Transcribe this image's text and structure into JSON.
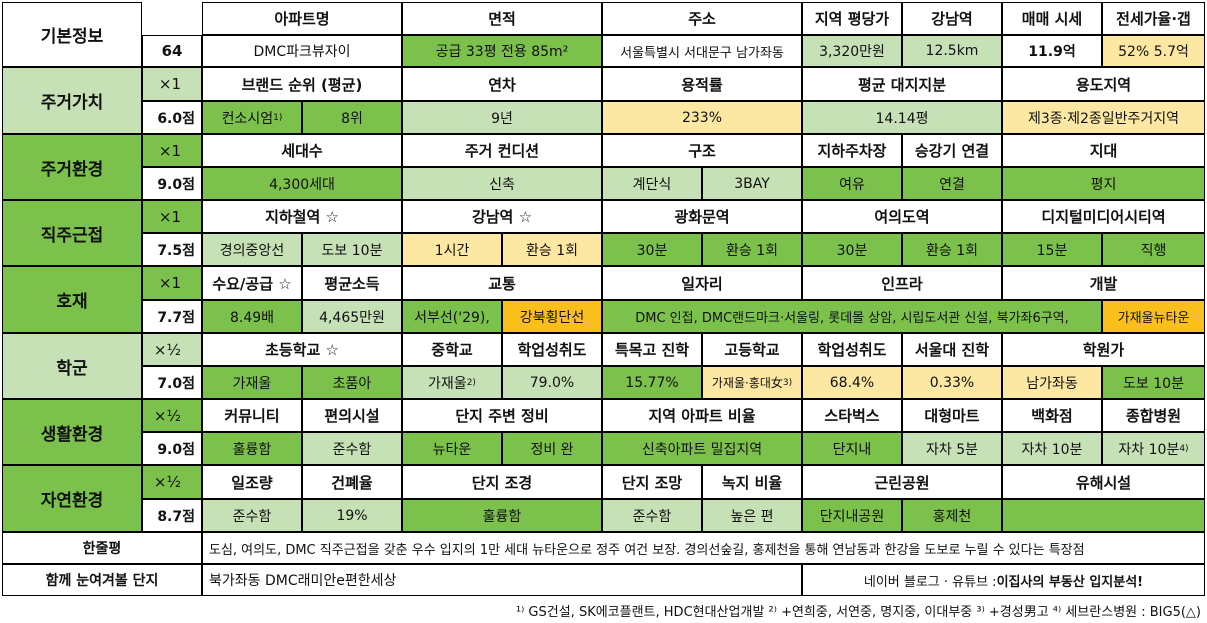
{
  "header": {
    "basic_info": "기본정보",
    "apt_no": "64",
    "cols": [
      "아파트명",
      "면적",
      "주소",
      "지역 평당가",
      "강남역",
      "매매 시세",
      "전세가율·갭"
    ],
    "values": {
      "apt_name": "DMC파크뷰자이",
      "area": "공급 33평   전용 85m²",
      "address": "서울특별시 서대문구 남가좌동",
      "price_per_pyeong": "3,320만원",
      "gangnam_dist": "12.5km",
      "sale_price": "11.9억",
      "jeonse_gap": "52%  5.7억"
    }
  },
  "sections": [
    {
      "name": "주거가치",
      "mult": "×1",
      "score": "6.0점"
    },
    {
      "name": "주거환경",
      "mult": "×1",
      "score": "9.0점"
    },
    {
      "name": "직주근접",
      "mult": "×1",
      "score": "7.5점"
    },
    {
      "name": "호재",
      "mult": "×1",
      "score": "7.7점"
    },
    {
      "name": "학군",
      "mult": "×½",
      "score": "7.0점"
    },
    {
      "name": "생활환경",
      "mult": "×½",
      "score": "9.0점"
    },
    {
      "name": "자연환경",
      "mult": "×½",
      "score": "8.7점"
    }
  ],
  "s1": {
    "h": [
      "브랜드 순위 (평균)",
      "연차",
      "용적률",
      "평균 대지지분",
      "용도지역"
    ],
    "brand": "컨소시엄",
    "brand_sup": "1)",
    "rank": "8위",
    "age": "9년",
    "far": "233%",
    "land": "14.14평",
    "zone": "제3종·제2종일반주거지역"
  },
  "s2": {
    "h": [
      "세대수",
      "주거 컨디션",
      "구조",
      "지하주차장",
      "승강기 연결",
      "지대"
    ],
    "v": [
      "4,300세대",
      "신축",
      "계단식",
      "3BAY",
      "여유",
      "연결",
      "평지"
    ]
  },
  "s3": {
    "h": [
      "지하철역 ☆",
      "강남역 ☆",
      "광화문역",
      "여의도역",
      "디지털미디어시티역"
    ],
    "v": [
      "경의중앙선",
      "도보 10분",
      "1시간",
      "환승 1회",
      "30분",
      "환승 1회",
      "30분",
      "환승 1회",
      "15분",
      "직행"
    ]
  },
  "s4": {
    "h": [
      "수요/공급 ☆",
      "평균소득",
      "교통",
      "일자리",
      "인프라",
      "개발"
    ],
    "v": [
      "8.49배",
      "4,465만원",
      "서부선('29),",
      "강북횡단선",
      "DMC 인접, DMC랜드마크·서울링, 롯데몰 상암, 시립도서관 신설, 북가좌6구역,",
      "가재울뉴타운"
    ]
  },
  "s5": {
    "h": [
      "초등학교 ☆",
      "중학교",
      "학업성취도",
      "특목고 진학",
      "고등학교",
      "학업성취도",
      "서울대 진학",
      "학원가"
    ],
    "elem1": "가재울",
    "elem2": "초품아",
    "middle": "가재울",
    "middle_sup": "2)",
    "middle_ach": "79.0%",
    "special": "15.77%",
    "high": "가재울·홍대女",
    "high_sup": "3)",
    "high_ach": "68.4%",
    "snu": "0.33%",
    "academy1": "남가좌동",
    "academy2": "도보 10분"
  },
  "s6": {
    "h": [
      "커뮤니티",
      "편의시설",
      "단지 주변 정비",
      "지역 아파트 비율",
      "스타벅스",
      "대형마트",
      "백화점",
      "종합병원"
    ],
    "v": [
      "훌륭함",
      "준수함",
      "뉴타운",
      "정비 완",
      "신축아파트 밀집지역",
      "단지내",
      "자차 5분",
      "자차 10분",
      "자차 10분"
    ],
    "hospital_sup": "4)"
  },
  "s7": {
    "h": [
      "일조량",
      "건폐율",
      "단지 조경",
      "단지 조망",
      "녹지 비율",
      "근린공원",
      "유해시설"
    ],
    "v": [
      "준수함",
      "19%",
      "훌륭함",
      "준수함",
      "높은 편",
      "단지내공원",
      "홍제천",
      ""
    ]
  },
  "summary": {
    "label": "한줄평",
    "text": "도심, 여의도, DMC 직주근접을 갖춘 우수 입지의 1만 세대 뉴타운으로 정주 여건 보장. 경의선숲길, 홍제천을 통해 연남동과 한강을 도보로 누릴 수 있다는 특장점"
  },
  "related": {
    "label": "함께 눈여겨볼 단지",
    "text": "북가좌동 DMC래미안e편한세상",
    "source_prefix": "네이버 블로그 · 유튜브 : ",
    "source_bold": "이집사의 부동산 입지분석!"
  },
  "footnote": "¹⁾ GS건설, SK에코플랜트, HDC현대산업개발 ²⁾ +연희중, 서연중, 명지중, 이대부중 ³⁾ +경성男고 ⁴⁾ 세브란스병원 : BIG5(△)",
  "colors": {
    "green": "#7cc14b",
    "light_green": "#c7e1b6",
    "light_yellow": "#fde8a3",
    "orange": "#fbbf1c"
  }
}
